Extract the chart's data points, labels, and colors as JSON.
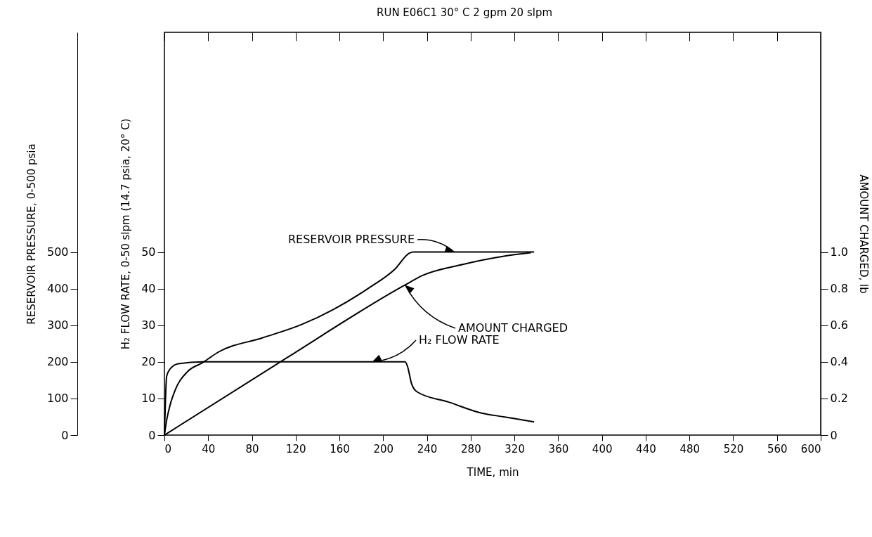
{
  "chart_data": {
    "type": "line",
    "title": "RUN E06C1 30° C 2 gpm 20 slpm",
    "xlabel": "TIME, min",
    "ylabel": "RESERVOIR PRESSURE, 0-500 psia",
    "y2label": "AMOUNT CHARGED, lb",
    "y3label": "H₂ FLOW RATE, 0-50 slpm (14.7 psia, 20° C)",
    "xlim": [
      0,
      600
    ],
    "xticks": [
      0,
      40,
      80,
      120,
      160,
      200,
      240,
      280,
      320,
      360,
      400,
      440,
      480,
      520,
      560,
      600
    ],
    "ylim": [
      0,
      1100
    ],
    "yticks": [
      0,
      100,
      200,
      300,
      400,
      500
    ],
    "y2lim": [
      0,
      2.2
    ],
    "y2ticks": [
      0,
      {
        "value": 0.2,
        "label": "0.2"
      },
      {
        "value": 0.4,
        "label": "0.4"
      },
      {
        "value": 0.6,
        "label": "0.6"
      },
      {
        "value": 0.8,
        "label": "0.8"
      },
      {
        "value": 1,
        "label": "1.0"
      }
    ],
    "y3lim": [
      0,
      110
    ],
    "y3ticks": [
      0,
      10,
      20,
      30,
      40,
      50
    ],
    "grid": false,
    "annotations": [
      {
        "text": "RESERVOIR PRESSURE",
        "x": 265,
        "y": 500
      },
      {
        "text": "H₂ FLOW RATE",
        "x": 190,
        "y": 200
      },
      {
        "text": "AMOUNT CHARGED",
        "x": 220,
        "y": 410
      }
    ],
    "series": [
      {
        "color": "#000000",
        "x": [
          0,
          2,
          5,
          10,
          21,
          35,
          49.5,
          89,
          125.5,
          155,
          187,
          211,
          224,
          228,
          338
        ],
        "values": [
          0,
          40,
          80,
          124,
          173,
          198,
          227,
          265,
          302,
          344,
          402,
          454,
          497,
          500,
          500
        ]
      },
      {
        "color": "#000000",
        "axis": "y3",
        "x": [
          0,
          1,
          2,
          5,
          12.7,
          35,
          220,
          222,
          226,
          231,
          260,
          290,
          310,
          320,
          338
        ],
        "values": [
          0,
          10,
          16,
          18,
          19.5,
          20,
          20,
          19,
          14,
          11.8,
          9,
          6,
          5,
          4.5,
          3.6
        ]
      },
      {
        "color": "#000000",
        "axis": "y2",
        "x": [
          0,
          106,
          220,
          236,
          272.7,
          309.5,
          335
        ],
        "values": [
          0,
          0.4,
          0.82,
          0.872,
          0.932,
          0.976,
          0.996
        ]
      }
    ]
  }
}
